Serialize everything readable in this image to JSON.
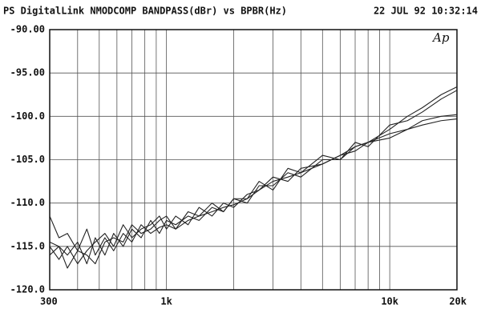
{
  "chart_data": {
    "type": "line",
    "title": "PS DigitalLink NMODCOMP BANDPASS(dBr) vs BPBR(Hz)",
    "timestamp": "22 JUL 92 10:32:14",
    "logo": "Ap",
    "xscale": "log",
    "grid": true,
    "xlim": [
      300,
      20000
    ],
    "ylim": [
      -120,
      -90
    ],
    "xticks": [
      300,
      {
        "value": 1000,
        "label": "1k"
      },
      {
        "value": 10000,
        "label": "10k"
      },
      {
        "value": 20000,
        "label": "20k"
      }
    ],
    "xminor": [
      400,
      500,
      600,
      700,
      800,
      900,
      2000,
      3000,
      4000,
      5000,
      6000,
      7000,
      8000,
      9000
    ],
    "yticks": [
      {
        "value": -90,
        "label": "-90.00"
      },
      {
        "value": -95,
        "label": "-95.00"
      },
      {
        "value": -100,
        "label": "-100.0"
      },
      {
        "value": -105,
        "label": "-105.0"
      },
      {
        "value": -110,
        "label": "-110.0"
      },
      {
        "value": -115,
        "label": "-115.0"
      },
      {
        "value": -120,
        "label": "-120.0"
      }
    ],
    "x": [
      300,
      330,
      360,
      400,
      440,
      480,
      530,
      580,
      640,
      700,
      770,
      850,
      930,
      1000,
      1100,
      1250,
      1400,
      1600,
      1800,
      2000,
      2300,
      2600,
      3000,
      3500,
      4000,
      5000,
      6000,
      7000,
      8000,
      10000,
      12000,
      14000,
      17000,
      20000
    ],
    "series": [
      {
        "color": "#222222",
        "values": [
          -111.5,
          -114,
          -113.5,
          -115.5,
          -113,
          -116,
          -114,
          -115.5,
          -113.5,
          -114.5,
          -112.5,
          -113.5,
          -112.8,
          -112.5,
          -113,
          -112,
          -111.5,
          -111,
          -110.5,
          -110.2,
          -109.5,
          -108.5,
          -107.5,
          -107,
          -106.5,
          -105.5,
          -104.5,
          -103.5,
          -103,
          -101.5,
          -100,
          -99,
          -97.5,
          -96.6
        ]
      },
      {
        "color": "#222222",
        "values": [
          -114.5,
          -115,
          -116,
          -114.5,
          -117,
          -114,
          -116,
          -113.5,
          -115,
          -113,
          -114,
          -112,
          -113.5,
          -112,
          -112.5,
          -111.5,
          -112,
          -110.5,
          -111,
          -109.5,
          -110,
          -108,
          -108,
          -106.5,
          -107,
          -105,
          -105,
          -103,
          -103.5,
          -101,
          -100.5,
          -99.5,
          -98,
          -97
        ]
      },
      {
        "color": "#222222",
        "values": [
          -115,
          -116.5,
          -115,
          -117,
          -115.5,
          -114.5,
          -113.5,
          -115,
          -112.5,
          -114,
          -113,
          -112.5,
          -111.5,
          -113,
          -111.5,
          -112.5,
          -110.5,
          -111.5,
          -110,
          -110.5,
          -109,
          -108.5,
          -107,
          -107.5,
          -106,
          -105.5,
          -104.5,
          -104,
          -103,
          -102,
          -101.5,
          -101,
          -100.5,
          -100.3
        ]
      },
      {
        "color": "#222222",
        "values": [
          -116,
          -115,
          -117.5,
          -115.5,
          -116,
          -117,
          -114.5,
          -114,
          -114.5,
          -112.5,
          -113.5,
          -113,
          -112,
          -111.5,
          -113,
          -111,
          -111.5,
          -110,
          -111,
          -109.5,
          -109.5,
          -107.5,
          -108.5,
          -106,
          -106.5,
          -104.5,
          -105,
          -103.5,
          -103,
          -102.5,
          -101.5,
          -100.5,
          -100,
          -99.8
        ]
      }
    ]
  }
}
